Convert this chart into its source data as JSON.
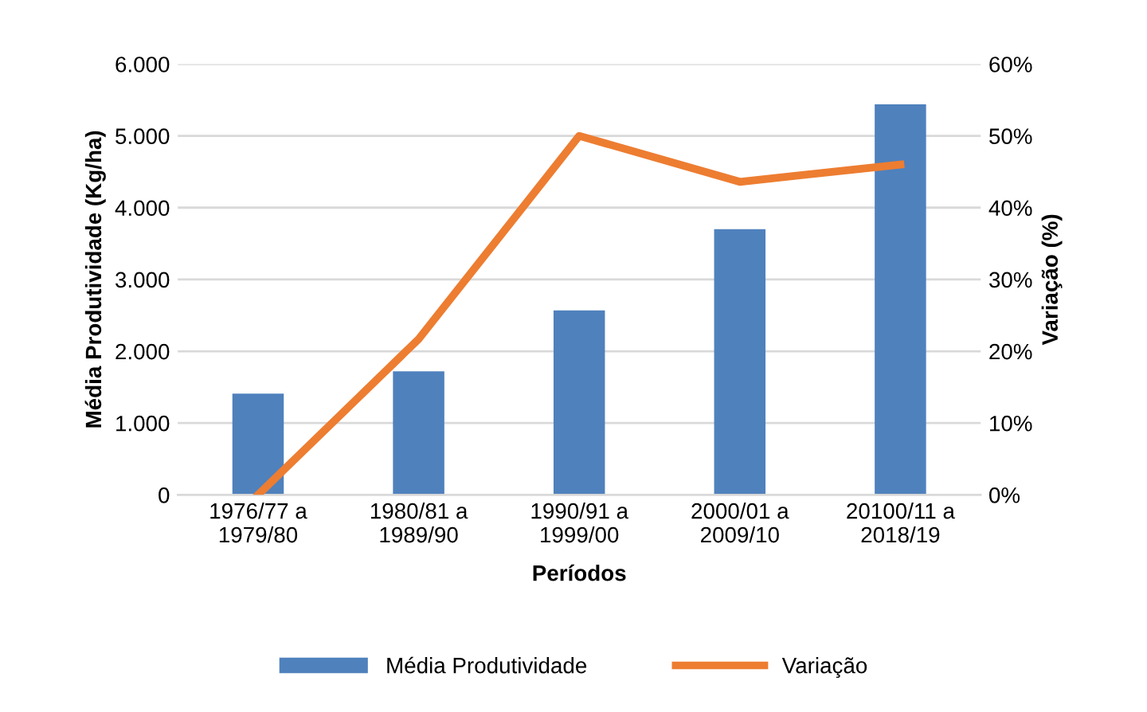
{
  "chart_data": {
    "type": "bar",
    "xlabel": "Períodos",
    "ylabel": "Média Produtividade (Kg/ha)",
    "y2label": "Variação (%)",
    "categories": [
      "1976/77 a\n1979/80",
      "1980/81 a\n1989/90",
      "1990/91 a\n1999/00",
      "2000/01 a\n2009/10",
      "20100/11 a\n2018/19"
    ],
    "series": [
      {
        "name": "Média Produtividade",
        "color": "#4f81bd",
        "values": [
          1410,
          1720,
          2570,
          3700,
          5440
        ]
      },
      {
        "name": "Variação",
        "type": "line",
        "axis": "y2",
        "color": "#ed7d31",
        "values": [
          0,
          21.7,
          50,
          43.6,
          46
        ]
      }
    ],
    "ylim": [
      0,
      6000
    ],
    "yticks": [
      {
        "value": 0,
        "label": "0"
      },
      {
        "value": 1000,
        "label": "1.000"
      },
      {
        "value": 2000,
        "label": "2.000"
      },
      {
        "value": 3000,
        "label": "3.000"
      },
      {
        "value": 4000,
        "label": "4.000"
      },
      {
        "value": 5000,
        "label": "5.000"
      },
      {
        "value": 6000,
        "label": "6.000"
      }
    ],
    "y2lim": [
      0,
      60
    ],
    "y2ticks": [
      {
        "value": 0,
        "label": "0%"
      },
      {
        "value": 10,
        "label": "10%"
      },
      {
        "value": 20,
        "label": "20%"
      },
      {
        "value": 30,
        "label": "30%"
      },
      {
        "value": 40,
        "label": "40%"
      },
      {
        "value": 50,
        "label": "50%"
      },
      {
        "value": 60,
        "label": "60%"
      }
    ],
    "grid": "y",
    "legend": "bottom",
    "marker": "none",
    "line_style": "solid"
  }
}
